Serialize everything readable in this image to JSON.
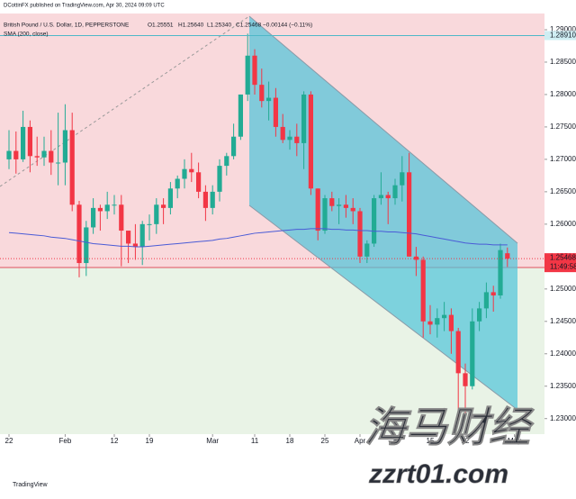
{
  "header": {
    "publisher": "DCottinFX published on TradingView.com, Apr 30, 2024 09:09 UTC",
    "ohlc": [
      "O1.25551",
      "H1.25640",
      "L1.25340",
      "C1.25468"
    ],
    "change": "−0.00144 (−0.11%)"
  },
  "chart_data": {
    "type": "candlestick",
    "title": "British Pound / U.S. Dollar, 1D, PEPPERSTONE",
    "up_color": "#22ab94",
    "down_color": "#f23645",
    "open": [
      1.27,
      1.2713,
      1.27,
      1.275,
      1.2705,
      1.2703,
      1.2713,
      1.2695,
      1.2695,
      1.2745,
      1.263,
      1.254,
      1.2595,
      1.2625,
      1.262,
      1.263,
      1.263,
      1.259,
      1.257,
      1.2565,
      1.26,
      1.26,
      1.263,
      1.2625,
      1.2655,
      1.267,
      1.2685,
      1.268,
      1.265,
      1.2625,
      1.265,
      1.269,
      1.2705,
      1.2735,
      1.28,
      1.286,
      1.2815,
      1.279,
      1.2795,
      1.275,
      1.273,
      1.2735,
      1.2725,
      1.28,
      1.2655,
      1.259,
      1.264,
      1.2628,
      1.263,
      1.2625,
      1.262,
      1.255,
      1.257,
      1.264,
      1.2645,
      1.264,
      1.266,
      1.268,
      1.255,
      1.2545,
      1.245,
      1.2445,
      1.2455,
      1.246,
      1.2435,
      1.237,
      1.235,
      1.245,
      1.247,
      1.2495,
      1.249,
      1.25551
    ],
    "high": [
      1.2745,
      1.2743,
      1.2775,
      1.276,
      1.2735,
      1.2735,
      1.2745,
      1.2772,
      1.2785,
      1.2772,
      1.2636,
      1.2605,
      1.264,
      1.263,
      1.265,
      1.2645,
      1.2645,
      1.259,
      1.26,
      1.2605,
      1.2615,
      1.264,
      1.264,
      1.2665,
      1.2675,
      1.27,
      1.271,
      1.2695,
      1.266,
      1.266,
      1.27,
      1.271,
      1.2755,
      1.28,
      1.2894,
      1.287,
      1.284,
      1.282,
      1.281,
      1.277,
      1.2745,
      1.2755,
      1.2805,
      1.2805,
      1.2655,
      1.2645,
      1.265,
      1.264,
      1.2645,
      1.264,
      1.2625,
      1.2575,
      1.2645,
      1.268,
      1.265,
      1.267,
      1.2705,
      1.271,
      1.2565,
      1.255,
      1.2475,
      1.247,
      1.248,
      1.247,
      1.244,
      1.2385,
      1.247,
      1.248,
      1.251,
      1.2505,
      1.257,
      1.2564
    ],
    "low": [
      1.2685,
      1.2678,
      1.2696,
      1.268,
      1.269,
      1.269,
      1.2676,
      1.266,
      1.266,
      1.262,
      1.2518,
      1.252,
      1.2585,
      1.259,
      1.2608,
      1.2615,
      1.2535,
      1.254,
      1.2545,
      1.2537,
      1.2575,
      1.2585,
      1.26,
      1.2615,
      1.264,
      1.2655,
      1.2665,
      1.264,
      1.2605,
      1.2615,
      1.2635,
      1.2675,
      1.27,
      1.273,
      1.279,
      1.28,
      1.278,
      1.276,
      1.2735,
      1.2725,
      1.2715,
      1.2705,
      1.2685,
      1.2645,
      1.2575,
      1.2585,
      1.262,
      1.26,
      1.261,
      1.26,
      1.254,
      1.254,
      1.2565,
      1.263,
      1.26,
      1.263,
      1.2635,
      1.255,
      1.252,
      1.2425,
      1.243,
      1.2425,
      1.2435,
      1.24,
      1.23,
      1.23,
      1.2345,
      1.2435,
      1.2455,
      1.2465,
      1.2485,
      1.2534
    ],
    "close": [
      1.2713,
      1.27,
      1.275,
      1.2705,
      1.2703,
      1.2713,
      1.2695,
      1.2695,
      1.2745,
      1.263,
      1.254,
      1.2595,
      1.2625,
      1.262,
      1.263,
      1.263,
      1.259,
      1.257,
      1.2565,
      1.26,
      1.26,
      1.263,
      1.2625,
      1.2655,
      1.267,
      1.2685,
      1.268,
      1.265,
      1.2625,
      1.265,
      1.269,
      1.2705,
      1.2735,
      1.28,
      1.286,
      1.2815,
      1.279,
      1.2795,
      1.275,
      1.273,
      1.2735,
      1.2725,
      1.28,
      1.2655,
      1.259,
      1.264,
      1.2628,
      1.263,
      1.2625,
      1.262,
      1.255,
      1.257,
      1.264,
      1.2645,
      1.264,
      1.266,
      1.268,
      1.255,
      1.2545,
      1.245,
      1.2445,
      1.2455,
      1.246,
      1.2435,
      1.237,
      1.235,
      1.245,
      1.247,
      1.2495,
      1.249,
      1.256,
      1.25468
    ],
    "sma": {
      "name": "SMA (200, close)",
      "color": "#4a5bd6",
      "values": [
        1.2587,
        1.2586,
        1.2585,
        1.2584,
        1.2583,
        1.2582,
        1.258,
        1.2579,
        1.2578,
        1.2576,
        1.2574,
        1.2572,
        1.257,
        1.2569,
        1.2568,
        1.2567,
        1.2566,
        1.2566,
        1.2565,
        1.2565,
        1.2566,
        1.2567,
        1.2568,
        1.2569,
        1.257,
        1.2571,
        1.2572,
        1.2573,
        1.2574,
        1.2575,
        1.2577,
        1.2578,
        1.258,
        1.2582,
        1.2584,
        1.2586,
        1.2587,
        1.2588,
        1.2589,
        1.259,
        1.2591,
        1.2592,
        1.2592,
        1.2593,
        1.2593,
        1.2593,
        1.2592,
        1.2592,
        1.2591,
        1.2591,
        1.259,
        1.259,
        1.2589,
        1.2589,
        1.2588,
        1.2588,
        1.2587,
        1.2586,
        1.2585,
        1.2583,
        1.2581,
        1.2579,
        1.2577,
        1.2575,
        1.2573,
        1.2571,
        1.257,
        1.2569,
        1.2569,
        1.2568,
        1.2568,
        1.2568
      ]
    },
    "ylim": [
      1.2276,
      1.2925
    ],
    "yticks": [
      {
        "value": 1.23,
        "label": "1.23000"
      },
      {
        "value": 1.235,
        "label": "1.23500"
      },
      {
        "value": 1.24,
        "label": "1.24000"
      },
      {
        "value": 1.245,
        "label": "1.24500"
      },
      {
        "value": 1.25,
        "label": "1.25000"
      },
      {
        "value": 1.255,
        "label": "1.25500"
      },
      {
        "value": 1.26,
        "label": "1.26000"
      },
      {
        "value": 1.265,
        "label": "1.26500"
      },
      {
        "value": 1.27,
        "label": "1.27000"
      },
      {
        "value": 1.275,
        "label": "1.27500"
      },
      {
        "value": 1.28,
        "label": "1.28000"
      },
      {
        "value": 1.285,
        "label": "1.28500"
      },
      {
        "value": 1.29,
        "label": "1.29000"
      }
    ],
    "xticks": [
      {
        "value": 0,
        "label": "22"
      },
      {
        "value": 8,
        "label": "Feb"
      },
      {
        "value": 15,
        "label": "12"
      },
      {
        "value": 20,
        "label": "19"
      },
      {
        "value": 29,
        "label": "Mar"
      },
      {
        "value": 35,
        "label": "11"
      },
      {
        "value": 40,
        "label": "18"
      },
      {
        "value": 45,
        "label": "25"
      },
      {
        "value": 50,
        "label": "Apr"
      },
      {
        "value": 55,
        "label": "8"
      },
      {
        "value": 60,
        "label": "15"
      },
      {
        "value": 65,
        "label": "22"
      },
      {
        "value": 72,
        "label": "May"
      }
    ],
    "hline": {
      "value": 1.2891,
      "label": "1.28910",
      "color": "#4fb8c8"
    },
    "countdown": "11:49:58"
  },
  "footer": {
    "logo": "TradingView"
  },
  "watermark": [
    "海马财经",
    "zzrt01.com"
  ]
}
